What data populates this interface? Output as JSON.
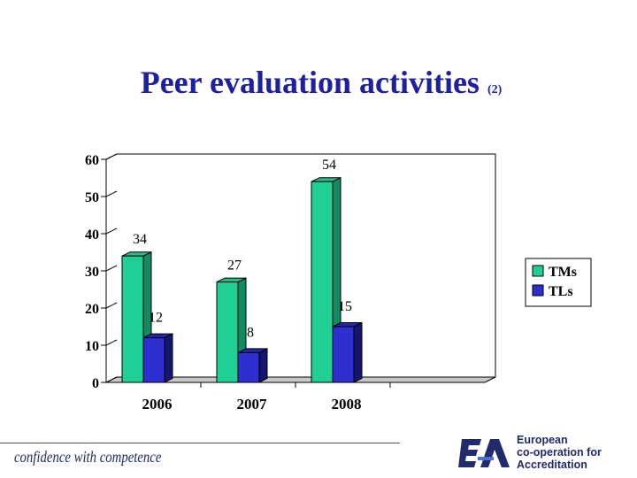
{
  "slide": {
    "title": "Peer evaluation activities",
    "title_suffix": "(2)"
  },
  "chart_data": {
    "type": "bar",
    "categories": [
      "2006",
      "2007",
      "2008",
      ""
    ],
    "series": [
      {
        "name": "TMs",
        "values": [
          34,
          27,
          54,
          null
        ]
      },
      {
        "name": "TLs",
        "values": [
          12,
          8,
          15,
          null
        ]
      }
    ],
    "ylim": [
      0,
      60
    ],
    "yticks": [
      0,
      10,
      20,
      30,
      40,
      50,
      60
    ],
    "grid": false,
    "legend": "right",
    "title": "",
    "xlabel": "",
    "ylabel": ""
  },
  "colors": {
    "title": "#1f20a0",
    "tms_face": "#1fcf96",
    "tms_side": "#128a62",
    "tms_top": "#2fb88a",
    "tls_face": "#2f2fd0",
    "tls_side": "#15156e",
    "tls_top": "#2525a8",
    "brand": "#1f2b6b"
  },
  "footer": {
    "tagline": "confidence with competence",
    "org_line1": "European",
    "org_line2": "co-operation for",
    "org_line3": "Accreditation",
    "logo_icon": "ea-logo"
  }
}
